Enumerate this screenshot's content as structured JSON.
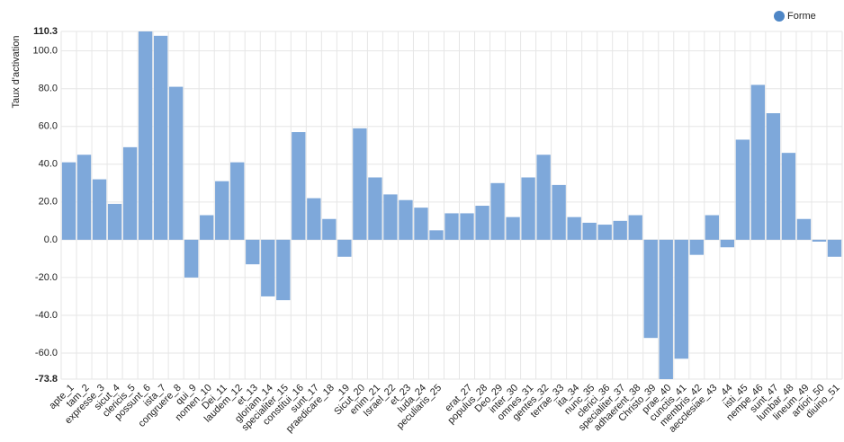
{
  "chart_data": {
    "type": "bar",
    "y_label": "Taux d'activation",
    "categories": [
      "apte_1",
      "tam_2",
      "expresse_3",
      "sicut_4",
      "clericis_5",
      "possunt_6",
      "ista_7",
      "congruere_8",
      "qui_9",
      "nomen_10",
      "Dei_11",
      "laudem_12",
      "et_13",
      "gloriam_14",
      "specialiter_15",
      "constitui_16",
      "sunt_17",
      "praedicare_18",
      "_19",
      "Sicut_20",
      "enim_21",
      "Israel_22",
      "et_23",
      "Iuda_24",
      "peculiaris_25",
      null,
      "erat_27",
      "populus_28",
      "Deo_29",
      "inter_30",
      "omnes_31",
      "gentes_32",
      "terrae_33",
      "ita_34",
      "nunc_35",
      "clerici_36",
      "specialiter_37",
      "adhaerent_38",
      "Christo_39",
      "prae_40",
      "cunctis_41",
      "membris_42",
      "aecclesiae_43",
      "_44",
      "isti_45",
      "nempe_46",
      "sunt_47",
      "lumbar_48",
      "lineum_49",
      "artiori_50",
      "diuino_51"
    ],
    "series": [
      {
        "name": "Forme",
        "color": "#7ea8da",
        "values": [
          41,
          45,
          32,
          19,
          49,
          110.3,
          108,
          81,
          -20,
          13,
          31,
          41,
          -13,
          -30,
          -32,
          57,
          22,
          11,
          -9,
          59,
          33,
          24,
          21,
          17,
          5,
          14,
          14,
          18,
          30,
          12,
          33,
          45,
          29,
          12,
          9,
          8,
          10,
          13,
          -52,
          -73.8,
          -63,
          -8,
          13,
          -4,
          53,
          82,
          67,
          46,
          11,
          -1,
          -9
        ]
      }
    ],
    "ylim": [
      -73.8,
      110.3
    ],
    "yticks": [
      -73.8,
      {
        "value": -60,
        "label": "-60.0"
      },
      {
        "value": -40,
        "label": "-40.0"
      },
      {
        "value": -20,
        "label": "-20.0"
      },
      {
        "value": 0,
        "label": "0.0"
      },
      {
        "value": 20,
        "label": "20.0"
      },
      {
        "value": 40,
        "label": "40.0"
      },
      {
        "value": 60,
        "label": "60.0"
      },
      {
        "value": 80,
        "label": "80.0"
      },
      {
        "value": 100,
        "label": "100.0"
      },
      110.3
    ],
    "grid": true,
    "legend": "top-right"
  }
}
